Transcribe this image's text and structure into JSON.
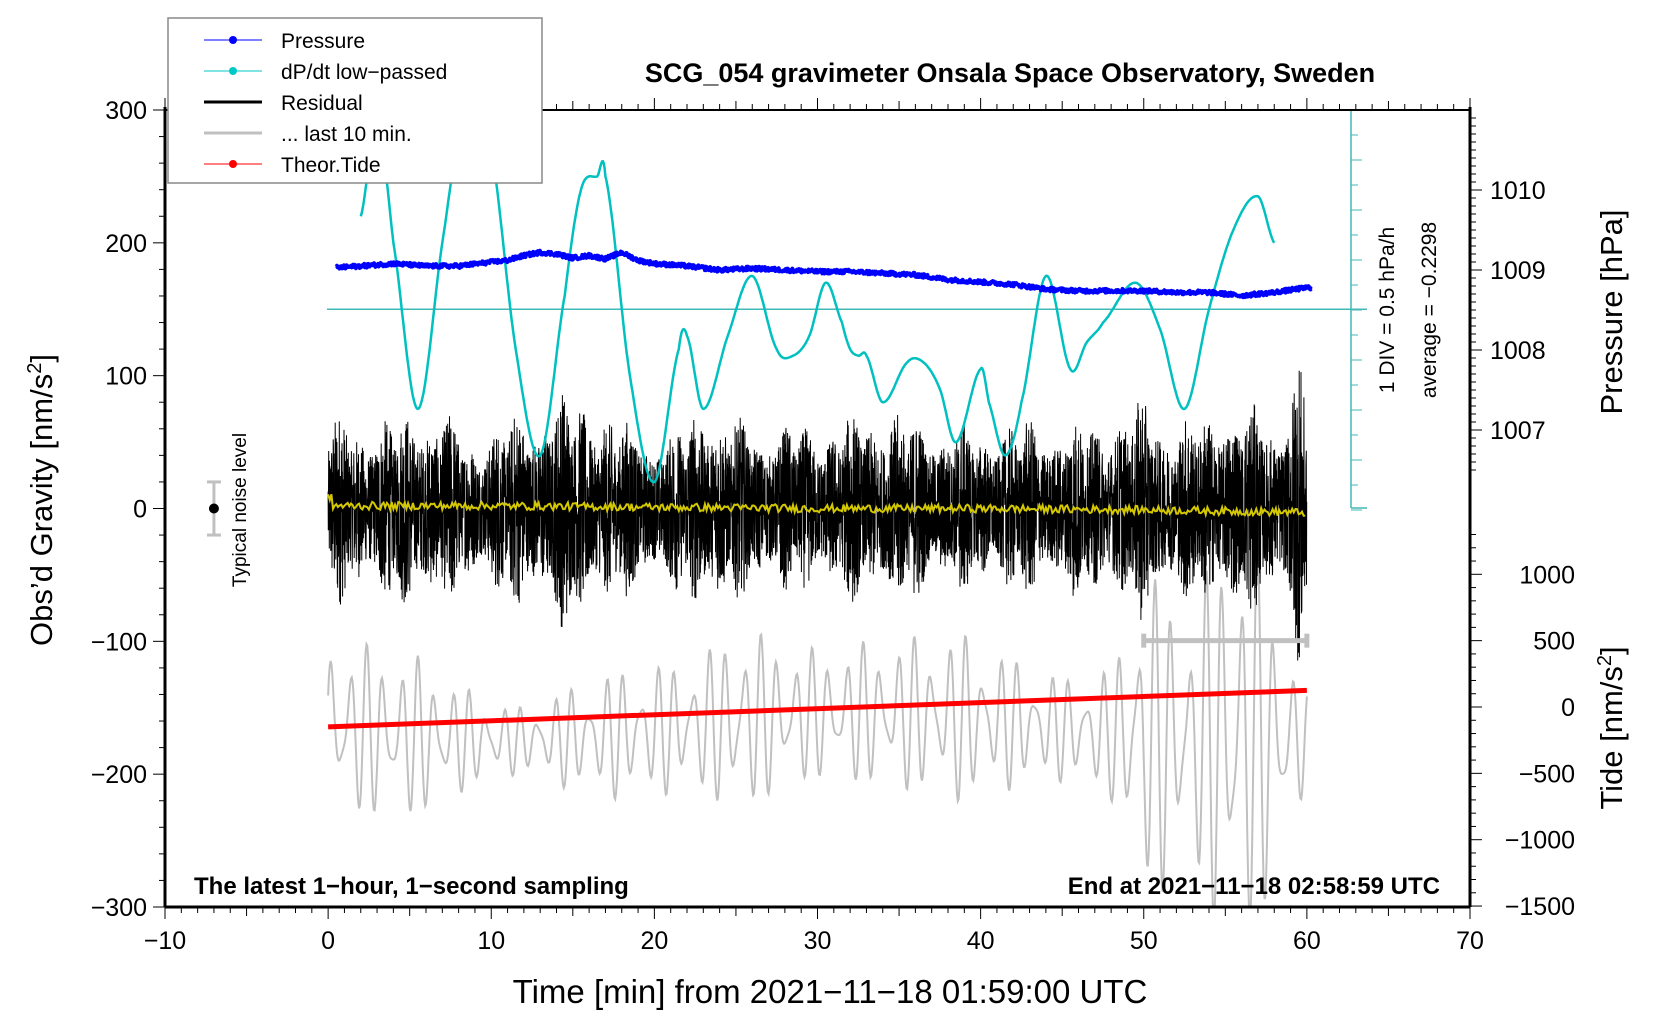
{
  "chart_data": {
    "type": "line",
    "title": "SCG_054 gravimeter Onsala Space Observatory, Sweden",
    "xlabel": "Time [min] from 2021−11−18 01:59:00 UTC",
    "ylabel_left_prefix": "Obs’d Gravity [nm/s",
    "ylabel_left_sup": "2",
    "ylabel_left_suffix": "]",
    "ylabel_right_top": "Pressure [hPa]",
    "ylabel_right_bottom_prefix": "Tide [nm/s",
    "ylabel_right_bottom_sup": "2",
    "ylabel_right_bottom_suffix": "]",
    "xlim": [
      -10,
      70
    ],
    "ylim_left": [
      -300,
      300
    ],
    "ylim_pressure": [
      1006,
      1011
    ],
    "ylim_tide": [
      -1500,
      1500
    ],
    "x_ticks": [
      -10,
      0,
      10,
      20,
      30,
      40,
      50,
      60,
      70
    ],
    "x_tick_labels": [
      "−10",
      "0",
      "10",
      "20",
      "30",
      "40",
      "50",
      "60",
      "70"
    ],
    "y_left_ticks": [
      300,
      200,
      100,
      0,
      -100,
      -200,
      -300
    ],
    "y_left_tick_labels": [
      "300",
      "200",
      "100",
      "0",
      "−100",
      "−200",
      "−300"
    ],
    "y_pressure_ticks": [
      1010,
      1009,
      1008,
      1007
    ],
    "y_pressure_tick_labels": [
      "1010",
      "1009",
      "1008",
      "1007"
    ],
    "y_tide_ticks": [
      1000,
      500,
      0,
      -500,
      -1000,
      -1500
    ],
    "y_tide_tick_labels": [
      "1000",
      "500",
      "0",
      "−500",
      "−1000",
      "−1500"
    ],
    "legend": {
      "position": "top-left",
      "entries": [
        {
          "label": "Pressure",
          "color": "#0000ff",
          "marker": true
        },
        {
          "label": "dP/dt low−passed",
          "color": "#00c8c8",
          "marker": true
        },
        {
          "label": "Residual",
          "color": "#000000",
          "marker": false
        },
        {
          "label": "... last 10 min.",
          "color": "#c0c0c0",
          "marker": false
        },
        {
          "label": "Theor.Tide",
          "color": "#ff0000",
          "marker": true
        }
      ]
    },
    "annotations": {
      "bottom_left": "The latest 1−hour, 1−second sampling",
      "bottom_right": "End at 2021−11−18 02:58:59 UTC",
      "noise_label": "Typical noise level",
      "div_label": "1 DIV = 0.5 hPa/h",
      "average_label": "average = −0.2298"
    },
    "noise_bar": {
      "x": -7,
      "center": 0,
      "half_range": 20
    },
    "last10_bar": {
      "x_start": 50,
      "x_end": 60,
      "tide_value": 500
    },
    "dpdt_reference": {
      "average": -0.2298,
      "div_per": 0.5,
      "unit": "hPa/h"
    },
    "series": [
      {
        "name": "Pressure",
        "axis": "pressure",
        "color": "#0000ff",
        "x": [
          0,
          2,
          4,
          6,
          8,
          10,
          11,
          12,
          13,
          14,
          15,
          16,
          17,
          18,
          19,
          20,
          22,
          24,
          26,
          28,
          30,
          32,
          34,
          36,
          38,
          40,
          42,
          44,
          46,
          48,
          50,
          52,
          54,
          56,
          58,
          60
        ],
        "y": [
          1009.02,
          1009.05,
          1009.08,
          1009.05,
          1009.05,
          1009.1,
          1009.12,
          1009.18,
          1009.22,
          1009.2,
          1009.15,
          1009.18,
          1009.14,
          1009.22,
          1009.12,
          1009.08,
          1009.05,
          1009.0,
          1009.02,
          1009.0,
          1008.98,
          1008.98,
          1008.96,
          1008.94,
          1008.88,
          1008.85,
          1008.82,
          1008.76,
          1008.74,
          1008.74,
          1008.74,
          1008.72,
          1008.72,
          1008.68,
          1008.72,
          1008.78
        ]
      },
      {
        "name": "dP/dt low-passed",
        "axis": "left",
        "color": "#00c0c0",
        "x": [
          2,
          3,
          4,
          5.5,
          7,
          8.5,
          10,
          11.5,
          13,
          14.5,
          15.5,
          16.5,
          17,
          18.5,
          20,
          21.5,
          22,
          23,
          24.5,
          26,
          27.5,
          28.5,
          29.5,
          30.5,
          31.5,
          32,
          32.5,
          33,
          34,
          35.5,
          36.5,
          37.5,
          38.5,
          40,
          40.5,
          41.5,
          42.5,
          44,
          45.5,
          46.5,
          47.5,
          49.5,
          51,
          52.5,
          54,
          55.5,
          57,
          58
        ],
        "y": [
          220,
          290,
          200,
          75,
          200,
          310,
          270,
          120,
          40,
          160,
          240,
          250,
          250,
          100,
          20,
          120,
          130,
          75,
          130,
          175,
          120,
          115,
          130,
          170,
          140,
          120,
          115,
          115,
          80,
          110,
          110,
          90,
          50,
          105,
          80,
          40,
          80,
          175,
          105,
          125,
          140,
          170,
          135,
          75,
          150,
          210,
          235,
          200
        ]
      },
      {
        "name": "Residual",
        "axis": "left",
        "color": "#000000",
        "envelope_x": [
          0,
          3,
          6,
          9,
          12,
          15,
          18,
          21,
          23,
          25,
          28,
          31,
          34,
          37,
          40,
          43,
          46,
          49,
          50,
          52,
          55,
          57,
          58.5,
          59.5,
          60
        ],
        "envelope_amp": [
          75,
          70,
          85,
          60,
          80,
          95,
          70,
          60,
          90,
          70,
          65,
          70,
          80,
          70,
          65,
          70,
          70,
          75,
          90,
          70,
          85,
          80,
          75,
          125,
          90
        ]
      },
      {
        "name": "Residual mean (yellow)",
        "axis": "left",
        "color": "#d4c800",
        "x": [
          0,
          10,
          20,
          30,
          40,
          50,
          60
        ],
        "y": [
          2,
          2,
          1,
          0,
          0,
          -1,
          -3
        ]
      },
      {
        "name": "... last 10 min.",
        "axis": "tide",
        "color": "#c0c0c0",
        "envelope_x": [
          0,
          3,
          6,
          9,
          12,
          15,
          18,
          21,
          24,
          25,
          27,
          30,
          33,
          36,
          39,
          42,
          45,
          48,
          50,
          53,
          55,
          57,
          59,
          60
        ],
        "envelope_amp": [
          700,
          650,
          600,
          350,
          250,
          400,
          500,
          500,
          600,
          800,
          600,
          500,
          550,
          600,
          650,
          500,
          400,
          500,
          1300,
          1000,
          1700,
          1500,
          700,
          400
        ]
      },
      {
        "name": "Theor.Tide",
        "axis": "tide",
        "color": "#ff0000",
        "x": [
          0,
          60
        ],
        "y": [
          -150,
          125
        ]
      }
    ]
  }
}
